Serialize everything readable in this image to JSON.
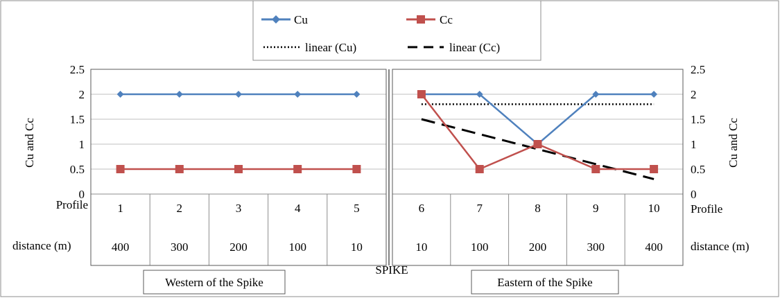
{
  "chart_data": {
    "type": "line",
    "ylabel_left": "Cu and Cc",
    "ylabel_right": "Cu and Cc",
    "ylim": [
      0,
      2.5
    ],
    "yticks": [
      "0",
      "0.5",
      "1",
      "1.5",
      "2",
      "2.5"
    ],
    "grid": true,
    "legend_position": "top-center",
    "legend": {
      "cu": "Cu",
      "cc": "Cc",
      "linear_cu": "linear (Cu)",
      "linear_cc": "linear (Cc)"
    },
    "row_labels": {
      "profile_left": "Profile",
      "profile_right": "Profile",
      "distance_left": "distance (m)",
      "distance_right": "distance (m)"
    },
    "profiles": [
      "1",
      "2",
      "3",
      "4",
      "5",
      "6",
      "7",
      "8",
      "9",
      "10"
    ],
    "distances": [
      "400",
      "300",
      "200",
      "100",
      "10",
      "10",
      "100",
      "200",
      "300",
      "400"
    ],
    "center_label": "SPIKE",
    "region_labels": {
      "west": "Western of the Spike",
      "east": "Eastern of the Spike"
    },
    "panels": [
      {
        "name": "west",
        "profiles": [
          1,
          2,
          3,
          4,
          5
        ],
        "series": [
          {
            "key": "cu",
            "values": [
              2,
              2,
              2,
              2,
              2
            ],
            "color": "#4f81bd",
            "marker": "diamond"
          },
          {
            "key": "cc",
            "values": [
              0.5,
              0.5,
              0.5,
              0.5,
              0.5
            ],
            "color": "#c0504d",
            "marker": "square"
          }
        ]
      },
      {
        "name": "east",
        "profiles": [
          6,
          7,
          8,
          9,
          10
        ],
        "series": [
          {
            "key": "cu",
            "values": [
              2,
              2,
              1,
              2,
              2
            ],
            "color": "#4f81bd",
            "marker": "diamond"
          },
          {
            "key": "cc",
            "values": [
              2,
              0.5,
              1,
              0.5,
              0.5
            ],
            "color": "#c0504d",
            "marker": "square"
          }
        ],
        "trendlines": [
          {
            "key": "linear_cu",
            "values": [
              1.8,
              1.8
            ],
            "color": "#000000",
            "style": "dotted"
          },
          {
            "key": "linear_cc",
            "values": [
              1.5,
              0.3
            ],
            "color": "#000000",
            "style": "dashed"
          }
        ]
      }
    ]
  }
}
